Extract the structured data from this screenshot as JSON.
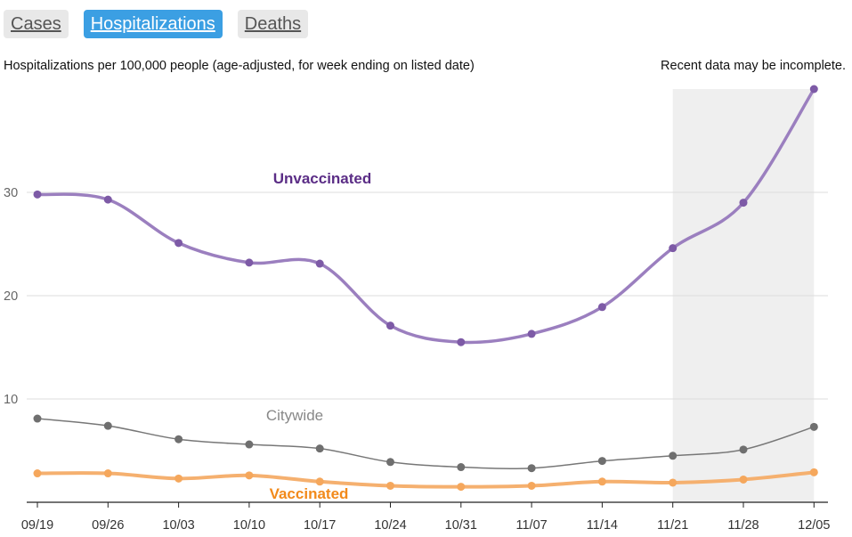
{
  "tabs": [
    {
      "label": "Cases",
      "active": false
    },
    {
      "label": "Hospitalizations",
      "active": true
    },
    {
      "label": "Deaths",
      "active": false
    }
  ],
  "subtitle": "Hospitalizations per 100,000 people (age-adjusted, for week ending on listed date)",
  "note": "Recent data may be incomplete.",
  "chart_data": {
    "type": "line",
    "x": [
      "09/19",
      "09/26",
      "10/03",
      "10/10",
      "10/17",
      "10/24",
      "10/31",
      "11/07",
      "11/14",
      "11/21",
      "11/28",
      "12/05"
    ],
    "ylim": [
      0,
      40
    ],
    "yticks": [
      10,
      20,
      30
    ],
    "grid": true,
    "incomplete_from": "11/21",
    "series": [
      {
        "name": "Unvaccinated",
        "color": "#9b7fbf",
        "label_color": "#5b2d86",
        "values": [
          29.8,
          29.3,
          25.1,
          23.2,
          23.1,
          17.1,
          15.5,
          16.3,
          18.9,
          24.6,
          29.0,
          40.0
        ]
      },
      {
        "name": "Citywide",
        "color": "#777777",
        "label_color": "#888888",
        "values": [
          8.1,
          7.4,
          6.1,
          5.6,
          5.2,
          3.9,
          3.4,
          3.3,
          4.0,
          4.5,
          5.1,
          7.3
        ]
      },
      {
        "name": "Vaccinated",
        "color": "#f5b06f",
        "label_color": "#f28a1b",
        "values": [
          2.8,
          2.8,
          2.3,
          2.6,
          2.0,
          1.6,
          1.5,
          1.6,
          2.0,
          1.9,
          2.2,
          2.9
        ]
      }
    ]
  }
}
